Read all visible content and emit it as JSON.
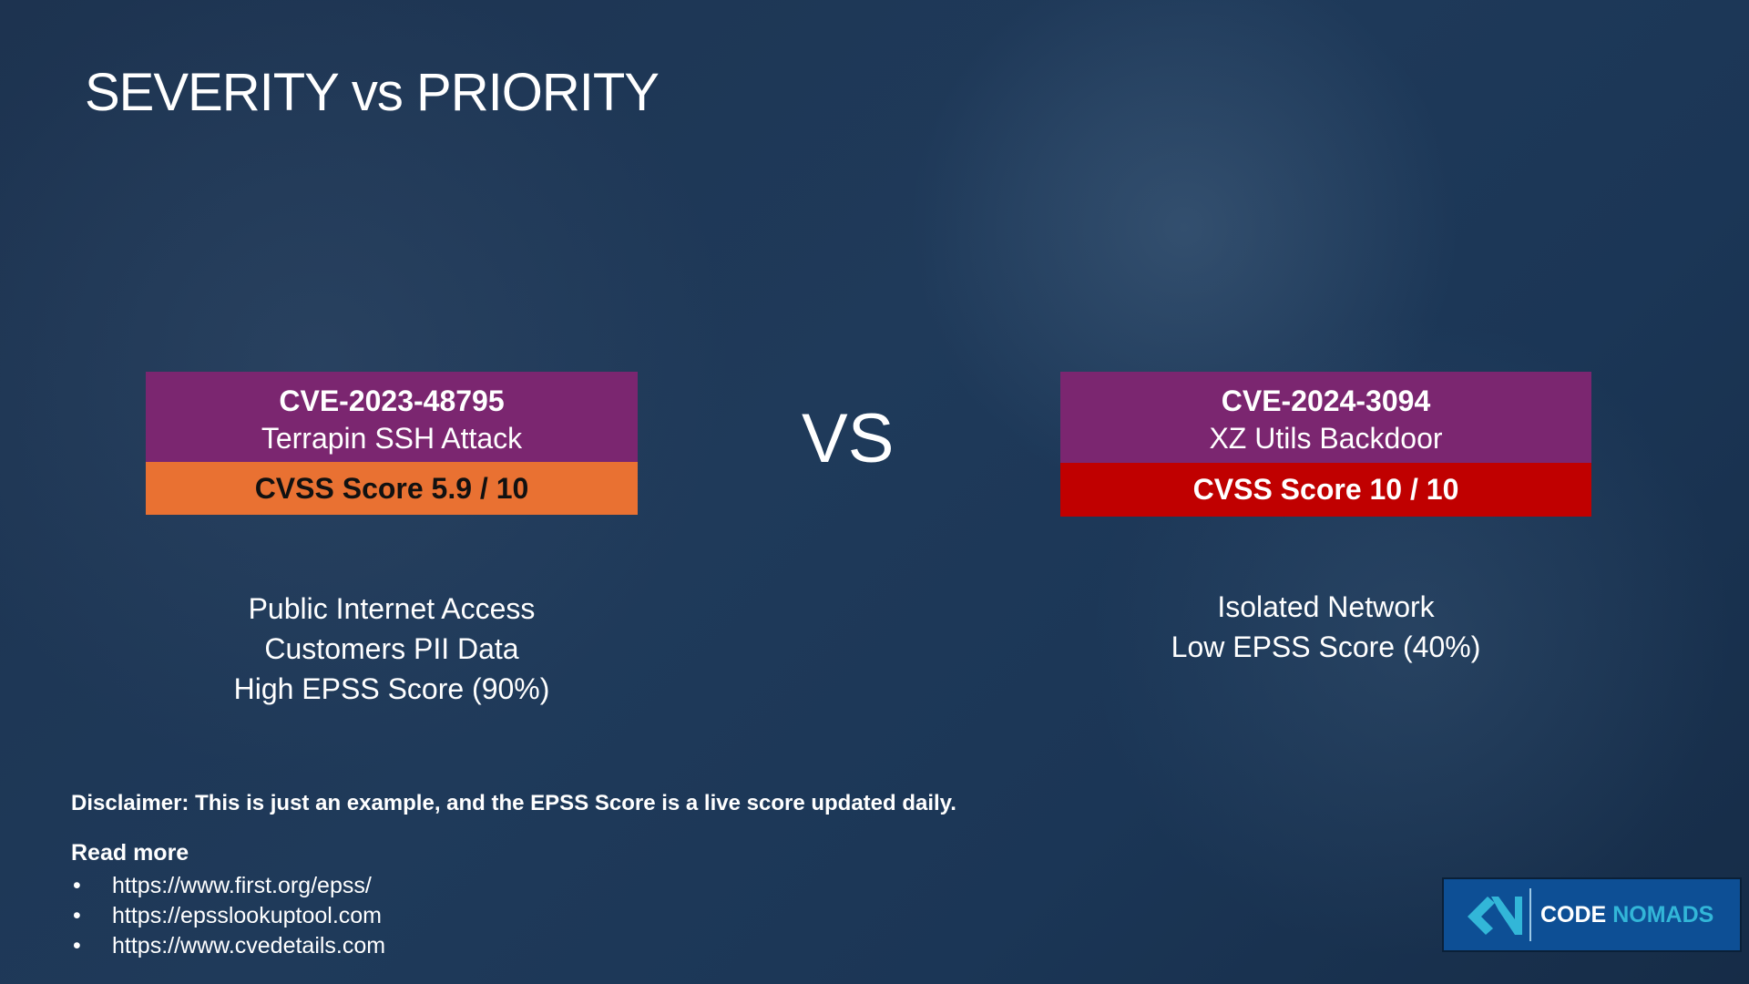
{
  "title": "SEVERITY vs PRIORITY",
  "left_card": {
    "cve": "CVE-2023-48795",
    "name": "Terrapin SSH Attack",
    "score": "CVSS Score 5.9 / 10",
    "score_color": "#e97132",
    "facts": [
      "Public Internet Access",
      "Customers PII Data",
      "High EPSS Score (90%)"
    ]
  },
  "vs": "VS",
  "right_card": {
    "cve": "CVE-2024-3094",
    "name": "XZ Utils Backdoor",
    "score": "CVSS Score 10 / 10",
    "score_color": "#c00000",
    "facts": [
      "Isolated Network",
      "Low EPSS Score (40%)"
    ]
  },
  "header_color": "#7b2670",
  "disclaimer": "Disclaimer: This is just an example, and the EPSS Score is a live score updated daily.",
  "read_more": {
    "label": "Read more",
    "links": [
      "https://www.first.org/epss/",
      "https://epsslookuptool.com",
      "https://www.cvedetails.com"
    ]
  },
  "logo": {
    "word1": "CODE",
    "word2": "NOMADS"
  }
}
